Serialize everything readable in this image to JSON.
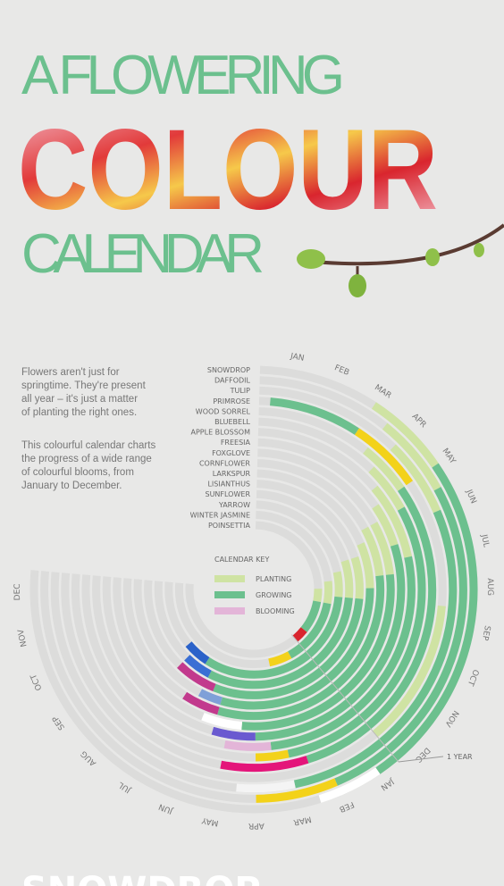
{
  "header": {
    "line1": "A FLOWERING",
    "line2": "COLOUR",
    "line3": "CALENDAR"
  },
  "intro": {
    "p1": [
      "Flowers aren't just for",
      "springtime. They're present",
      "all year – it's just a matter",
      "of planting the right ones."
    ],
    "p2": [
      "This colourful calendar charts",
      "the progress of a wide range",
      "of colourful blooms, from",
      "January to December."
    ]
  },
  "key": {
    "title": "CALENDAR KEY",
    "planting": "PLANTING",
    "growing": "GROWING",
    "blooming": "BLOOMING"
  },
  "colors": {
    "planting": "#cfe3a3",
    "growing": "#6cc08e",
    "track": "#dcdcdb"
  },
  "months": [
    "JAN",
    "FEB",
    "MAR",
    "APR",
    "MAY",
    "JUN",
    "JUL",
    "AUG",
    "SEP",
    "OCT",
    "NOV",
    "DEC"
  ],
  "year_marker": "1 YEAR",
  "flowers": [
    {
      "name": "SNOWDROP",
      "bloom_color": "#ffffff",
      "planting": [
        2.5,
        4.5
      ],
      "growing": [
        4.5,
        12.5
      ],
      "blooming": [
        12.5,
        14
      ]
    },
    {
      "name": "DAFFODIL",
      "bloom_color": "#f3d21a",
      "planting": [
        3,
        5
      ],
      "growing": [
        5,
        13.5
      ],
      "blooming": [
        13.5,
        15.5
      ]
    },
    {
      "name": "TULIP",
      "bloom_color": "#f4f4f4",
      "planting": [
        3.5,
        5.5
      ],
      "growing": [
        5.5,
        14.5
      ],
      "blooming": [
        14.5,
        16
      ]
    },
    {
      "name": "PRIMROSE",
      "bloom_color": "#f3d21a",
      "planting": [
        8,
        12
      ],
      "growing": [
        0,
        2.5
      ],
      "blooming": [
        2.5,
        4.5
      ]
    },
    {
      "name": "WOOD SORREL",
      "bloom_color": "#e4157a",
      "planting": [
        3,
        4.5
      ],
      "growing": [
        4.5,
        14
      ],
      "blooming": [
        14,
        16.5
      ]
    },
    {
      "name": "BLUEBELL",
      "bloom_color": "#f3d21a",
      "planting": [
        3.5,
        5
      ],
      "growing": [
        5,
        14.5
      ],
      "blooming": [
        14.5,
        15.5
      ]
    },
    {
      "name": "APPLE BLOSSOM",
      "bloom_color": "#e3b5d8",
      "planting": [
        4,
        6.5
      ],
      "growing": [
        6.5,
        15
      ],
      "blooming": [
        15,
        16.5
      ]
    },
    {
      "name": "FREESIA",
      "bloom_color": "#6a5ad0",
      "planting": [
        4.5,
        6
      ],
      "growing": [
        6,
        15.5
      ],
      "blooming": [
        15.5,
        17
      ]
    },
    {
      "name": "FOXGLOVE",
      "bloom_color": "#ffffff",
      "planting": [
        5,
        7
      ],
      "growing": [
        7,
        16
      ],
      "blooming": [
        16,
        17.5
      ]
    },
    {
      "name": "CORNFLOWER",
      "bloom_color": "#c23a8d",
      "planting": [
        5,
        7
      ],
      "growing": [
        7,
        17
      ],
      "blooming": [
        17,
        18.5
      ]
    },
    {
      "name": "LARKSPUR",
      "bloom_color": "#7fa0d8",
      "planting": [
        5.5,
        7.5
      ],
      "growing": [
        7.5,
        17
      ],
      "blooming": [
        17,
        18
      ]
    },
    {
      "name": "LISIANTHUS",
      "bloom_color": "#c23a8d",
      "planting": [
        6,
        8
      ],
      "growing": [
        8,
        17.5
      ],
      "blooming": [
        17.5,
        19.5
      ]
    },
    {
      "name": "SUNFLOWER",
      "bloom_color": "#3a6fd4",
      "planting": [
        6,
        8
      ],
      "growing": [
        8,
        18
      ],
      "blooming": [
        18,
        19.5
      ]
    },
    {
      "name": "YARROW",
      "bloom_color": "#2b62c9",
      "planting": [
        6.5,
        8
      ],
      "growing": [
        8,
        18.5
      ],
      "blooming": [
        18.5,
        20
      ]
    },
    {
      "name": "WINTER JASMINE",
      "bloom_color": "#f3d21a",
      "planting": [
        7,
        8.5
      ],
      "growing": [
        8.5,
        13
      ],
      "blooming": [
        13,
        14.5
      ]
    },
    {
      "name": "POINSETTIA",
      "bloom_color": "#d9252e",
      "planting": [
        7.5,
        8.5
      ],
      "growing": [
        8.5,
        11
      ],
      "blooming": [
        11,
        12
      ]
    }
  ],
  "next_section": "SNOWDROP"
}
